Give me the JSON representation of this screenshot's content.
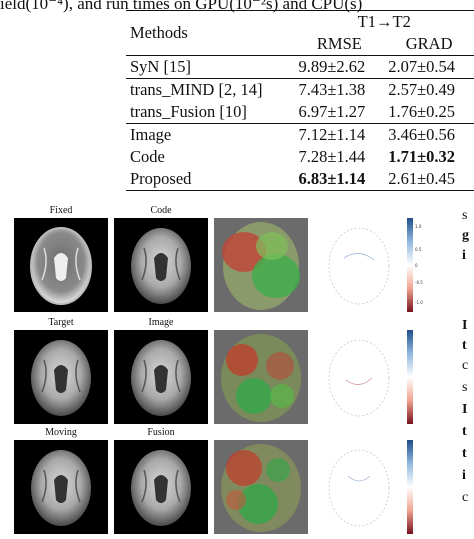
{
  "caption_fragment": "ield(10⁻⁴), and run times on GPU(10⁻²s) and CPU(s)",
  "table": {
    "group_header": "T1→T2",
    "col_method": "Methods",
    "col_rmse": "RMSE",
    "col_grad": "GRAD",
    "rows": [
      {
        "method": "SyN [15]",
        "rmse": "9.89±2.62",
        "grad": "2.07±0.54"
      },
      {
        "method": "trans_MIND [2, 14]",
        "rmse": "7.43±1.38",
        "grad": "2.57±0.49"
      },
      {
        "method": "trans_Fusion [10]",
        "rmse": "6.97±1.27",
        "grad": "1.76±0.25"
      },
      {
        "method": "Image",
        "rmse": "7.12±1.14",
        "grad": "3.46±0.56"
      },
      {
        "method": "Code",
        "rmse": "7.28±1.44",
        "grad": "1.71±0.32"
      },
      {
        "method": "Proposed",
        "rmse": "6.83±1.14",
        "grad": "2.61±0.45"
      }
    ]
  },
  "figure": {
    "labels": [
      "Fixed",
      "Code",
      "Target",
      "Image",
      "Moving",
      "Fusion"
    ],
    "colorbar_ticks": [
      "1.0",
      "0.5",
      "0",
      "-0.5",
      "-1.0"
    ]
  },
  "side_text": [
    "s",
    "g",
    "i",
    "I",
    "t",
    "c",
    "s",
    "I",
    "t",
    "t",
    "i",
    "c"
  ],
  "colors": {
    "accent_red": "#c23b2a",
    "accent_green": "#2fa84a"
  }
}
